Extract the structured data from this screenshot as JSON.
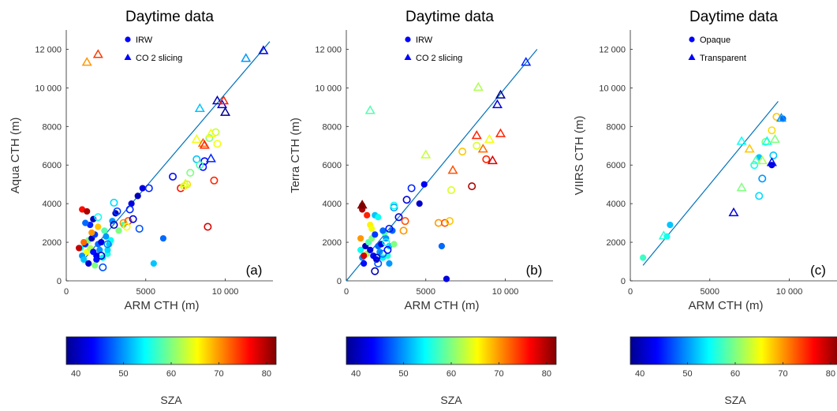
{
  "palette": [
    "#00008f",
    "#0000ff",
    "#0080ff",
    "#00ffff",
    "#80ff80",
    "#ffff00",
    "#ff8000",
    "#ff0000",
    "#800000"
  ],
  "line_color": "#0072bd",
  "chart_data": [
    {
      "type": "scatter",
      "title": "Daytime data",
      "xlabel": "ARM CTH (m)",
      "ylabel": "Aqua CTH (m)",
      "panel_label": "(a)",
      "xlim": [
        0,
        13000
      ],
      "ylim": [
        0,
        13000
      ],
      "xticks": [
        0,
        5000,
        10000
      ],
      "xtick_labels": [
        "0",
        "5000",
        "10 000"
      ],
      "yticks": [
        0,
        2000,
        4000,
        6000,
        8000,
        10000,
        12000
      ],
      "ytick_labels": [
        "0",
        "2000",
        "4000",
        "6000",
        "8000",
        "10 000",
        "12 000"
      ],
      "legend": [
        "IRW",
        "CO 2 slicing"
      ],
      "legend_marker_color": "#0000ff",
      "one_to_one_line": {
        "x": [
          1000,
          12800
        ],
        "y": [
          1000,
          12400
        ]
      },
      "colorbar": {
        "label": "SZA",
        "range": [
          38,
          82
        ],
        "ticks": [
          "40",
          "50",
          "60",
          "70",
          "80"
        ]
      },
      "series": [
        {
          "marker": "filled-circle",
          "points": [
            [
              900,
              1700,
              55
            ],
            [
              1000,
              1300,
              50
            ],
            [
              1100,
              1100,
              52
            ],
            [
              1200,
              1900,
              45
            ],
            [
              1300,
              1500,
              65
            ],
            [
              1400,
              2100,
              60
            ],
            [
              1500,
              1700,
              62
            ],
            [
              1600,
              2200,
              40
            ],
            [
              1700,
              1500,
              44
            ],
            [
              1800,
              2400,
              46
            ],
            [
              1900,
              1300,
              43
            ],
            [
              2000,
              1900,
              48
            ],
            [
              2100,
              1600,
              50
            ],
            [
              2200,
              2000,
              42
            ],
            [
              2300,
              1200,
              54
            ],
            [
              2400,
              2600,
              58
            ],
            [
              2600,
              1400,
              56
            ],
            [
              2700,
              1900,
              52
            ],
            [
              2500,
              2300,
              50
            ],
            [
              2800,
              2100,
              55
            ],
            [
              1500,
              2900,
              45
            ],
            [
              1200,
              3000,
              48
            ],
            [
              1700,
              3200,
              40
            ],
            [
              1000,
              3700,
              76
            ],
            [
              1300,
              3600,
              80
            ],
            [
              1100,
              2000,
              72
            ],
            [
              1600,
              2500,
              70
            ],
            [
              2000,
              2800,
              68
            ],
            [
              800,
              1700,
              79
            ],
            [
              1400,
              900,
              41
            ],
            [
              1900,
              1100,
              44
            ],
            [
              2600,
              1600,
              53
            ],
            [
              2900,
              3100,
              50
            ],
            [
              3100,
              3500,
              40
            ],
            [
              3300,
              2600,
              60
            ],
            [
              3600,
              2900,
              58
            ],
            [
              4100,
              4000,
              42
            ],
            [
              4500,
              4400,
              40
            ],
            [
              4800,
              4800,
              42
            ],
            [
              6100,
              2200,
              48
            ],
            [
              5500,
              900,
              52
            ],
            [
              1800,
              800,
              60
            ]
          ]
        },
        {
          "marker": "open-circle",
          "points": [
            [
              2300,
              700,
              47
            ],
            [
              2600,
              1900,
              49
            ],
            [
              3000,
              4050,
              53
            ],
            [
              3200,
              3600,
              46
            ],
            [
              3600,
              3000,
              70
            ],
            [
              3900,
              3100,
              73
            ],
            [
              4000,
              3700,
              45
            ],
            [
              4200,
              3200,
              42
            ],
            [
              4600,
              2700,
              47
            ],
            [
              5200,
              4800,
              45
            ],
            [
              6700,
              5400,
              44
            ],
            [
              7200,
              4800,
              76
            ],
            [
              7400,
              4900,
              64
            ],
            [
              8200,
              6300,
              52
            ],
            [
              8600,
              5900,
              44
            ],
            [
              9000,
              7400,
              60
            ],
            [
              8700,
              6200,
              43
            ],
            [
              9300,
              5200,
              75
            ],
            [
              9400,
              7700,
              63
            ],
            [
              8900,
              2800,
              78
            ],
            [
              9500,
              7100,
              65
            ],
            [
              8400,
              6000,
              58
            ],
            [
              7800,
              5600,
              60
            ],
            [
              7600,
              5000,
              67
            ],
            [
              3800,
              2800,
              65
            ],
            [
              2200,
              1300,
              40
            ],
            [
              2000,
              3300,
              55
            ],
            [
              3000,
              2900,
              40
            ]
          ]
        },
        {
          "marker": "triangle",
          "points": [
            [
              1300,
              11300,
              70
            ],
            [
              2000,
              11700,
              74
            ],
            [
              7500,
              5000,
              64
            ],
            [
              8200,
              7300,
              65
            ],
            [
              8600,
              7100,
              72
            ],
            [
              9100,
              7600,
              65
            ],
            [
              8400,
              8900,
              52
            ],
            [
              9500,
              9300,
              40
            ],
            [
              9800,
              9100,
              42
            ],
            [
              10000,
              8700,
              38
            ],
            [
              11300,
              11500,
              50
            ],
            [
              12400,
              11900,
              42
            ],
            [
              9100,
              6300,
              45
            ],
            [
              8700,
              7000,
              75
            ],
            [
              9900,
              9300,
              75
            ]
          ]
        }
      ]
    },
    {
      "type": "scatter",
      "title": "Daytime data",
      "xlabel": "ARM CTH (m)",
      "ylabel": "Terra  CTH (m)",
      "panel_label": "(b)",
      "xlim": [
        0,
        13000
      ],
      "ylim": [
        0,
        13000
      ],
      "xticks": [
        0,
        5000,
        10000
      ],
      "xtick_labels": [
        "0",
        "5000",
        "10 000"
      ],
      "yticks": [
        0,
        2000,
        4000,
        6000,
        8000,
        10000,
        12000
      ],
      "ytick_labels": [
        "0",
        "2000",
        "4000",
        "6000",
        "8000",
        "10 000",
        "12 000"
      ],
      "legend": [
        "IRW",
        "CO 2 slicing"
      ],
      "legend_marker_color": "#0000ff",
      "one_to_one_line": {
        "x": [
          0,
          12000
        ],
        "y": [
          0,
          12000
        ]
      },
      "colorbar": {
        "label": "SZA",
        "range": [
          38,
          82
        ],
        "ticks": [
          "40",
          "50",
          "60",
          "70",
          "80"
        ]
      },
      "series": [
        {
          "marker": "filled-circle",
          "points": [
            [
              900,
              1600,
              55
            ],
            [
              1000,
              1200,
              50
            ],
            [
              1100,
              900,
              44
            ],
            [
              1200,
              1800,
              40
            ],
            [
              1300,
              1400,
              62
            ],
            [
              1400,
              2000,
              58
            ],
            [
              1500,
              1600,
              42
            ],
            [
              1600,
              2200,
              60
            ],
            [
              1700,
              1300,
              44
            ],
            [
              1800,
              2400,
              46
            ],
            [
              1900,
              1100,
              43
            ],
            [
              2000,
              1800,
              48
            ],
            [
              2100,
              1500,
              50
            ],
            [
              2200,
              1900,
              42
            ],
            [
              2300,
              1200,
              54
            ],
            [
              2400,
              2500,
              58
            ],
            [
              2600,
              1300,
              56
            ],
            [
              2700,
              1800,
              52
            ],
            [
              2500,
              2200,
              50
            ],
            [
              1500,
              2900,
              66
            ],
            [
              1300,
              3400,
              75
            ],
            [
              1000,
              3700,
              80
            ],
            [
              1000,
              3900,
              82
            ],
            [
              900,
              2200,
              70
            ],
            [
              1800,
              3400,
              52
            ],
            [
              2000,
              3300,
              55
            ],
            [
              1600,
              2700,
              65
            ],
            [
              2300,
              2600,
              48
            ],
            [
              2900,
              2600,
              48
            ],
            [
              3000,
              1900,
              60
            ],
            [
              4600,
              4000,
              41
            ],
            [
              4900,
              5000,
              43
            ],
            [
              6000,
              1800,
              48
            ],
            [
              6300,
              100,
              42
            ],
            [
              1100,
              1300,
              78
            ],
            [
              2700,
              900,
              50
            ]
          ]
        },
        {
          "marker": "open-circle",
          "points": [
            [
              1800,
              500,
              40
            ],
            [
              2000,
              900,
              47
            ],
            [
              2300,
              1400,
              48
            ],
            [
              2500,
              2000,
              55
            ],
            [
              2700,
              2700,
              44
            ],
            [
              3000,
              3800,
              50
            ],
            [
              3000,
              3900,
              55
            ],
            [
              3300,
              3300,
              42
            ],
            [
              3600,
              2600,
              70
            ],
            [
              3700,
              3100,
              73
            ],
            [
              3800,
              4200,
              42
            ],
            [
              4100,
              4800,
              45
            ],
            [
              5800,
              3000,
              70
            ],
            [
              6200,
              3000,
              73
            ],
            [
              6500,
              3100,
              68
            ],
            [
              6600,
              4700,
              64
            ],
            [
              7300,
              6700,
              68
            ],
            [
              7900,
              4900,
              80
            ],
            [
              8800,
              6300,
              75
            ],
            [
              8200,
              7000,
              64
            ],
            [
              2600,
              1600,
              44
            ],
            [
              1900,
              1200,
              40
            ]
          ]
        },
        {
          "marker": "triangle",
          "points": [
            [
              1500,
              8800,
              58
            ],
            [
              5000,
              6500,
              63
            ],
            [
              6700,
              5700,
              73
            ],
            [
              8200,
              7500,
              75
            ],
            [
              8300,
              10000,
              62
            ],
            [
              8600,
              6800,
              72
            ],
            [
              9000,
              7300,
              65
            ],
            [
              9200,
              6200,
              78
            ],
            [
              9500,
              9100,
              42
            ],
            [
              9700,
              9600,
              38
            ],
            [
              9700,
              7600,
              75
            ],
            [
              11300,
              11300,
              45
            ],
            [
              1000,
              3900,
              82
            ]
          ]
        }
      ]
    },
    {
      "type": "scatter",
      "title": "Daytime data",
      "xlabel": "ARM CTH (m)",
      "ylabel": "VIIRS CTH (m)",
      "panel_label": "(c)",
      "xlim": [
        0,
        13000
      ],
      "ylim": [
        0,
        13000
      ],
      "xticks": [
        0,
        5000,
        10000
      ],
      "xtick_labels": [
        "0",
        "5000",
        "10 000"
      ],
      "yticks": [
        0,
        2000,
        4000,
        6000,
        8000,
        10000,
        12000
      ],
      "ytick_labels": [
        "0",
        "2000",
        "4000",
        "6000",
        "8000",
        "10 000",
        "12 000"
      ],
      "legend": [
        "Opaque",
        "Transparent"
      ],
      "legend_marker_color": "#0000ff",
      "one_to_one_line": {
        "x": [
          800,
          9300
        ],
        "y": [
          800,
          9300
        ]
      },
      "colorbar": {
        "label": "SZA",
        "range": [
          38,
          82
        ],
        "ticks": [
          "40",
          "50",
          "60",
          "70",
          "80"
        ]
      },
      "series": [
        {
          "marker": "filled-circle",
          "points": [
            [
              800,
              1200,
              57
            ],
            [
              2300,
              2300,
              55
            ],
            [
              2500,
              2900,
              52
            ],
            [
              8100,
              6400,
              52
            ],
            [
              8900,
              6000,
              42
            ],
            [
              9600,
              8400,
              48
            ]
          ]
        },
        {
          "marker": "open-circle",
          "points": [
            [
              7800,
              6000,
              55
            ],
            [
              8100,
              4400,
              53
            ],
            [
              8300,
              5300,
              50
            ],
            [
              8900,
              7800,
              67
            ],
            [
              9000,
              6500,
              52
            ],
            [
              9200,
              8500,
              68
            ],
            [
              8500,
              7200,
              60
            ]
          ]
        },
        {
          "marker": "triangle",
          "points": [
            [
              6500,
              3500,
              42
            ],
            [
              7000,
              4800,
              60
            ],
            [
              7500,
              6800,
              68
            ],
            [
              7900,
              6200,
              58
            ],
            [
              8600,
              7200,
              55
            ],
            [
              9100,
              7300,
              60
            ],
            [
              7000,
              7200,
              55
            ],
            [
              8900,
              6100,
              44
            ],
            [
              2100,
              2300,
              56
            ],
            [
              9500,
              8400,
              50
            ],
            [
              8300,
              6200,
              62
            ]
          ]
        }
      ]
    }
  ]
}
